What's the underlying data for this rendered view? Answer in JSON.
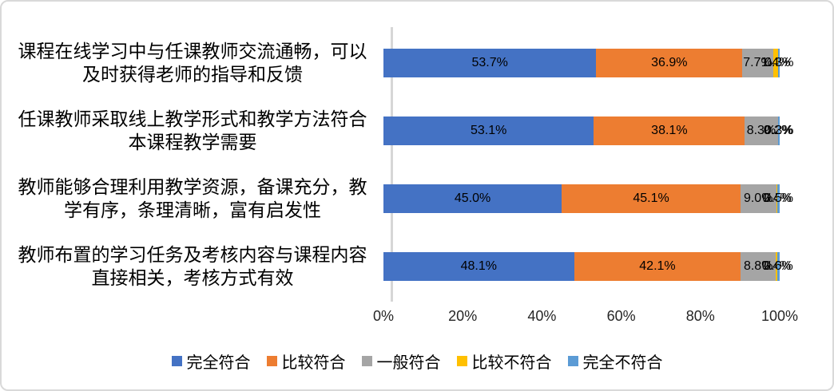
{
  "chart_data": {
    "type": "bar",
    "orientation": "horizontal",
    "stacked": true,
    "title": "",
    "categories": [
      "课程在线学习中与任课教师交流通畅，可以及时获得老师的指导和反馈",
      "任课教师采取线上教学形式和教学方法符合本课程教学需要",
      "教师能够合理利用教学资源，备课充分，教学有序，条理清晰，富有启发性",
      "教师布置的学习任务及考核内容与课程内容直接相关，考核方式有效"
    ],
    "series": [
      {
        "name": "完全符合",
        "color": "#4472C4",
        "values": [
          53.7,
          53.1,
          45.0,
          48.1
        ]
      },
      {
        "name": "比较符合",
        "color": "#ED7D31",
        "values": [
          36.9,
          38.1,
          45.1,
          42.1
        ]
      },
      {
        "name": "一般符合",
        "color": "#A5A5A5",
        "values": [
          7.7,
          8.3,
          9.0,
          8.8
        ]
      },
      {
        "name": "比较不符合",
        "color": "#FFC000",
        "values": [
          1.4,
          0.2,
          0.4,
          0.4
        ]
      },
      {
        "name": "完全不符合",
        "color": "#5B9BD5",
        "values": [
          0.3,
          0.3,
          0.5,
          0.6
        ]
      }
    ],
    "data_label_format": "0.0%",
    "x_axis": {
      "min": 0,
      "max": 100,
      "tick_step": 20,
      "ticks": [
        "0%",
        "20%",
        "40%",
        "60%",
        "80%",
        "100%"
      ]
    },
    "legend_position": "bottom",
    "grid": false
  },
  "style": {
    "axis_line_color": "#d6d6d6",
    "text_color": "#000000",
    "tick_text_color": "#262626",
    "frame_border_color": "#d9d9d9",
    "background_color": "#ffffff"
  }
}
